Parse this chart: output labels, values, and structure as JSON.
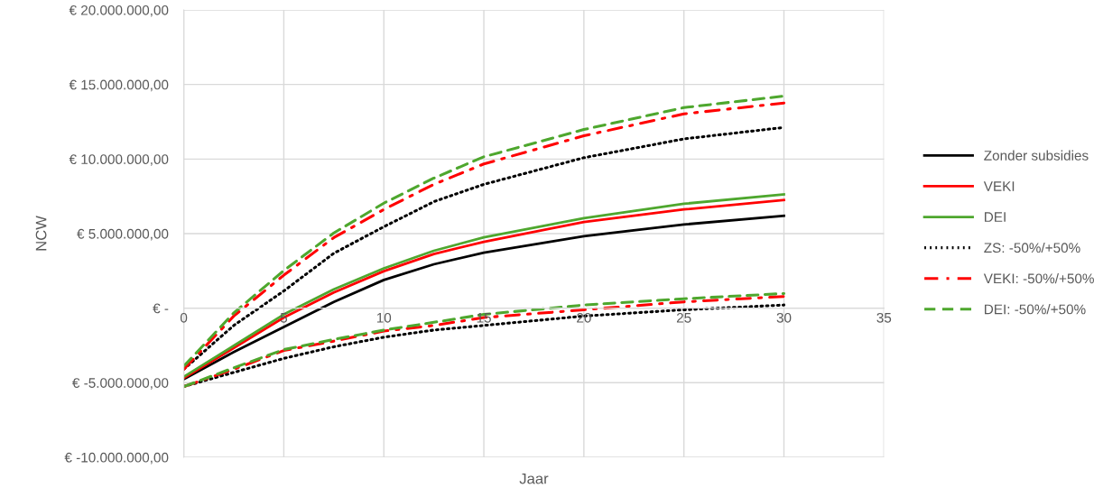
{
  "chart_data": {
    "type": "line",
    "xlabel": "Jaar",
    "ylabel": "NCW",
    "x": [
      0,
      2.5,
      5,
      7.5,
      10,
      12.5,
      15,
      20,
      25,
      30
    ],
    "series": [
      {
        "name": "Zonder subsidies",
        "color": "#000000",
        "line_style": "solid",
        "values": [
          -4770000,
          -2940000,
          -1260000,
          420000,
          1890000,
          2940000,
          3720000,
          4830000,
          5610000,
          6200000
        ]
      },
      {
        "name": "VEKI",
        "color": "#ff0000",
        "line_style": "solid",
        "values": [
          -4690000,
          -2670000,
          -630000,
          1050000,
          2480000,
          3630000,
          4450000,
          5780000,
          6620000,
          7250000
        ]
      },
      {
        "name": "DEI",
        "color": "#4ea72e",
        "line_style": "solid",
        "values": [
          -4600000,
          -2520000,
          -420000,
          1260000,
          2670000,
          3850000,
          4750000,
          6030000,
          7000000,
          7630000
        ]
      },
      {
        "name": "ZS: -50%/+50%",
        "color": "#000000",
        "line_style": "dotted",
        "values": [
          -4100000,
          -1160000,
          1150000,
          3680000,
          5460000,
          7140000,
          8300000,
          10090000,
          11350000,
          12120000
        ]
      },
      {
        "name": "VEKI: -50%/+50%",
        "color": "#ff0000",
        "line_style": "dashdot",
        "values": [
          -4100000,
          -530000,
          2210000,
          4730000,
          6620000,
          8300000,
          9670000,
          11560000,
          13030000,
          13760000
        ]
      },
      {
        "name": "DEI: -50%/+50%",
        "color": "#4ea72e",
        "line_style": "dashed",
        "values": [
          -3890000,
          -320000,
          2520000,
          5040000,
          7040000,
          8720000,
          10150000,
          11980000,
          13450000,
          14220000
        ]
      },
      {
        "color": "#000000",
        "line_style": "dotted",
        "values": [
          -5260000,
          -4310000,
          -3370000,
          -2590000,
          -1950000,
          -1470000,
          -1160000,
          -530000,
          -110000,
          210000
        ]
      },
      {
        "color": "#ff0000",
        "line_style": "dashdot",
        "values": [
          -5260000,
          -4100000,
          -2840000,
          -2210000,
          -1540000,
          -1160000,
          -630000,
          -110000,
          420000,
          780000
        ]
      },
      {
        "color": "#4ea72e",
        "line_style": "dashed",
        "values": [
          -5260000,
          -4000000,
          -2780000,
          -2100000,
          -1470000,
          -950000,
          -420000,
          210000,
          630000,
          980000
        ]
      }
    ],
    "xlim": [
      0,
      35
    ],
    "xticks": [
      0,
      5,
      10,
      15,
      20,
      25,
      30,
      35
    ],
    "ylim": [
      -10000000,
      20000000
    ],
    "yticks": [
      {
        "value": -10000000,
        "label": "€ -10.000.000,00"
      },
      {
        "value": -5000000,
        "label": "€ -5.000.000,00"
      },
      {
        "value": 0,
        "label": "€ -"
      },
      {
        "value": 5000000,
        "label": "€ 5.000.000,00"
      },
      {
        "value": 10000000,
        "label": "€ 10.000.000,00"
      },
      {
        "value": 15000000,
        "label": "€ 15.000.000,00"
      },
      {
        "value": 20000000,
        "label": "€ 20.000.000,00"
      }
    ],
    "grid": true,
    "legend": "right",
    "marker": "none"
  }
}
